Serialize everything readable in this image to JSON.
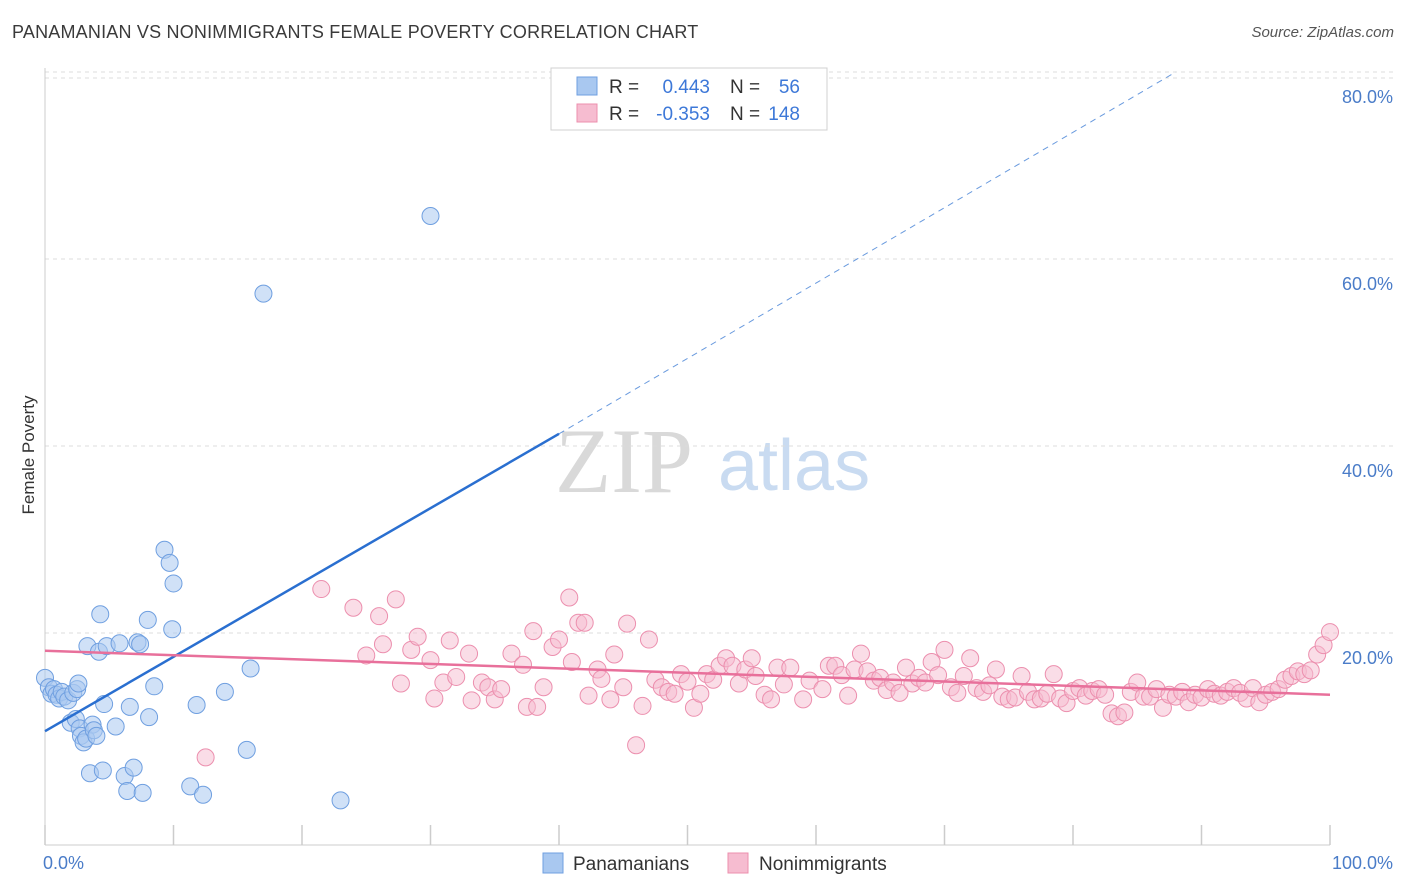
{
  "title": "PANAMANIAN VS NONIMMIGRANTS FEMALE POVERTY CORRELATION CHART",
  "source": "Source: ZipAtlas.com",
  "watermark": {
    "zip": "ZIP",
    "atlas": "atlas"
  },
  "chart_data": {
    "type": "scatter",
    "ylabel": "Female Poverty",
    "xlabel": "",
    "xlim": [
      0,
      100
    ],
    "ylim": [
      0,
      82
    ],
    "x_tick_labels": [
      "0.0%",
      "100.0%"
    ],
    "y_ticks": [
      20,
      40,
      60,
      80
    ],
    "y_tick_labels": [
      "20.0%",
      "40.0%",
      "60.0%",
      "80.0%"
    ],
    "colors": {
      "panamanians_fill": "#a9c8f0",
      "panamanians_stroke": "#6f9fe0",
      "panamanians_line": "#2a6fd0",
      "nonimmigrants_fill": "#f6bcd0",
      "nonimmigrants_stroke": "#ec8fae",
      "nonimmigrants_line": "#e8709b",
      "grid": "#dcdcdc"
    },
    "legend": {
      "r_label": "R =",
      "n_label": "N =",
      "entries": [
        {
          "r": "0.443",
          "n": "56"
        },
        {
          "r": "-0.353",
          "n": "148"
        }
      ]
    },
    "series": [
      {
        "name": "Panamanians",
        "trend": {
          "x0": 0,
          "y0": 9.5,
          "x1": 40,
          "y1": 41.3,
          "dash_to_x": 88,
          "dash_to_y": 80
        },
        "points": [
          [
            0,
            15.2
          ],
          [
            0.3,
            14.2
          ],
          [
            0.5,
            13.5
          ],
          [
            0.7,
            14.0
          ],
          [
            0.9,
            13.4
          ],
          [
            1.1,
            13.0
          ],
          [
            1.3,
            13.7
          ],
          [
            1.5,
            13.2
          ],
          [
            1.8,
            12.8
          ],
          [
            2.0,
            10.4
          ],
          [
            2.2,
            13.6
          ],
          [
            2.4,
            10.8
          ],
          [
            2.5,
            14.0
          ],
          [
            2.6,
            14.6
          ],
          [
            2.7,
            9.8
          ],
          [
            2.8,
            9.0
          ],
          [
            3.0,
            8.3
          ],
          [
            3.2,
            8.7
          ],
          [
            3.3,
            18.6
          ],
          [
            3.5,
            5.0
          ],
          [
            3.7,
            10.2
          ],
          [
            3.8,
            9.6
          ],
          [
            4.0,
            9.0
          ],
          [
            4.2,
            18.0
          ],
          [
            4.3,
            22.0
          ],
          [
            4.5,
            5.3
          ],
          [
            4.6,
            12.4
          ],
          [
            4.8,
            18.6
          ],
          [
            5.5,
            10.0
          ],
          [
            5.8,
            18.9
          ],
          [
            6.2,
            4.7
          ],
          [
            6.4,
            3.1
          ],
          [
            6.6,
            12.1
          ],
          [
            6.9,
            5.6
          ],
          [
            7.2,
            19.0
          ],
          [
            7.4,
            18.8
          ],
          [
            7.6,
            2.9
          ],
          [
            8.0,
            21.4
          ],
          [
            8.1,
            11.0
          ],
          [
            8.5,
            14.3
          ],
          [
            9.3,
            28.9
          ],
          [
            9.7,
            27.5
          ],
          [
            9.9,
            20.4
          ],
          [
            10.0,
            25.3
          ],
          [
            11.3,
            3.6
          ],
          [
            11.8,
            12.3
          ],
          [
            12.3,
            2.7
          ],
          [
            14.0,
            13.7
          ],
          [
            15.7,
            7.5
          ],
          [
            16.0,
            16.2
          ],
          [
            17.0,
            56.3
          ],
          [
            23.0,
            2.1
          ],
          [
            30.0,
            64.6
          ]
        ]
      },
      {
        "name": "Nonimmigrants",
        "trend": {
          "x0": 0,
          "y0": 18.1,
          "x1": 100,
          "y1": 13.4
        },
        "points": [
          [
            12.5,
            6.7
          ],
          [
            21.5,
            24.7
          ],
          [
            24.0,
            22.7
          ],
          [
            25.0,
            17.6
          ],
          [
            26.0,
            21.8
          ],
          [
            26.3,
            18.8
          ],
          [
            27.3,
            23.6
          ],
          [
            27.7,
            14.6
          ],
          [
            28.5,
            18.2
          ],
          [
            29.0,
            19.6
          ],
          [
            30.0,
            17.1
          ],
          [
            30.3,
            13.0
          ],
          [
            31.0,
            14.7
          ],
          [
            31.5,
            19.2
          ],
          [
            32.0,
            15.3
          ],
          [
            33.0,
            17.8
          ],
          [
            33.2,
            12.8
          ],
          [
            34.0,
            14.7
          ],
          [
            34.5,
            14.2
          ],
          [
            35.0,
            12.9
          ],
          [
            35.5,
            14.0
          ],
          [
            36.3,
            17.8
          ],
          [
            37.2,
            16.6
          ],
          [
            37.5,
            12.1
          ],
          [
            38.0,
            20.2
          ],
          [
            38.3,
            12.1
          ],
          [
            38.8,
            14.2
          ],
          [
            39.5,
            18.5
          ],
          [
            40.0,
            19.3
          ],
          [
            40.8,
            23.8
          ],
          [
            41.0,
            16.9
          ],
          [
            41.5,
            21.1
          ],
          [
            42.0,
            21.1
          ],
          [
            42.3,
            13.3
          ],
          [
            43.0,
            16.1
          ],
          [
            43.3,
            15.1
          ],
          [
            44.0,
            12.9
          ],
          [
            44.3,
            17.7
          ],
          [
            45.0,
            14.2
          ],
          [
            45.3,
            21.0
          ],
          [
            46.0,
            8.0
          ],
          [
            46.5,
            12.2
          ],
          [
            47.0,
            19.3
          ],
          [
            47.5,
            15.0
          ],
          [
            48.0,
            14.2
          ],
          [
            48.5,
            13.7
          ],
          [
            49.0,
            13.5
          ],
          [
            49.5,
            15.6
          ],
          [
            50.0,
            14.8
          ],
          [
            50.5,
            12.0
          ],
          [
            51.0,
            13.5
          ],
          [
            51.5,
            15.6
          ],
          [
            52.0,
            15.0
          ],
          [
            52.5,
            16.5
          ],
          [
            53.0,
            17.3
          ],
          [
            53.5,
            16.5
          ],
          [
            54.0,
            14.6
          ],
          [
            54.5,
            16.1
          ],
          [
            55.0,
            17.3
          ],
          [
            55.3,
            15.4
          ],
          [
            56.0,
            13.4
          ],
          [
            56.5,
            12.9
          ],
          [
            57.0,
            16.3
          ],
          [
            57.5,
            14.5
          ],
          [
            58.0,
            16.3
          ],
          [
            59.0,
            12.9
          ],
          [
            59.5,
            14.9
          ],
          [
            60.5,
            14.0
          ],
          [
            61.0,
            16.5
          ],
          [
            61.5,
            16.5
          ],
          [
            62.0,
            15.5
          ],
          [
            62.5,
            13.3
          ],
          [
            63.0,
            16.1
          ],
          [
            63.5,
            17.8
          ],
          [
            64.0,
            15.9
          ],
          [
            64.5,
            14.9
          ],
          [
            65.0,
            15.2
          ],
          [
            65.5,
            13.9
          ],
          [
            66.0,
            14.7
          ],
          [
            66.5,
            13.6
          ],
          [
            67.0,
            16.3
          ],
          [
            67.5,
            14.6
          ],
          [
            68.0,
            15.2
          ],
          [
            68.5,
            14.7
          ],
          [
            69.0,
            16.9
          ],
          [
            69.5,
            15.5
          ],
          [
            70.0,
            18.2
          ],
          [
            70.5,
            14.2
          ],
          [
            71.0,
            13.6
          ],
          [
            71.5,
            15.4
          ],
          [
            72.0,
            17.3
          ],
          [
            72.5,
            14.1
          ],
          [
            73.0,
            13.7
          ],
          [
            73.5,
            14.4
          ],
          [
            74.0,
            16.1
          ],
          [
            74.5,
            13.2
          ],
          [
            75.0,
            12.9
          ],
          [
            75.5,
            13.1
          ],
          [
            76.0,
            15.4
          ],
          [
            76.5,
            13.7
          ],
          [
            77.0,
            12.9
          ],
          [
            77.5,
            13.0
          ],
          [
            78.0,
            13.5
          ],
          [
            78.5,
            15.6
          ],
          [
            79.0,
            13.0
          ],
          [
            79.5,
            12.5
          ],
          [
            80.0,
            13.8
          ],
          [
            80.5,
            14.1
          ],
          [
            81.0,
            13.3
          ],
          [
            81.5,
            13.8
          ],
          [
            82.0,
            14.0
          ],
          [
            82.5,
            13.4
          ],
          [
            83.0,
            11.4
          ],
          [
            83.5,
            11.1
          ],
          [
            84.0,
            11.5
          ],
          [
            84.5,
            13.7
          ],
          [
            85.0,
            14.7
          ],
          [
            85.5,
            13.2
          ],
          [
            86.0,
            13.2
          ],
          [
            86.5,
            14.0
          ],
          [
            87.0,
            12.0
          ],
          [
            87.5,
            13.4
          ],
          [
            88.0,
            13.2
          ],
          [
            88.5,
            13.7
          ],
          [
            89.0,
            12.6
          ],
          [
            89.5,
            13.4
          ],
          [
            90.0,
            13.1
          ],
          [
            90.5,
            14.0
          ],
          [
            91.0,
            13.5
          ],
          [
            91.5,
            13.3
          ],
          [
            92.0,
            13.7
          ],
          [
            92.5,
            14.1
          ],
          [
            93.0,
            13.6
          ],
          [
            93.5,
            13.0
          ],
          [
            94.0,
            14.1
          ],
          [
            94.5,
            12.6
          ],
          [
            95.0,
            13.4
          ],
          [
            95.5,
            13.7
          ],
          [
            96.0,
            14.0
          ],
          [
            96.5,
            15.0
          ],
          [
            97.0,
            15.4
          ],
          [
            97.5,
            15.9
          ],
          [
            98.0,
            15.6
          ],
          [
            98.5,
            16.0
          ],
          [
            99.0,
            17.7
          ],
          [
            99.5,
            18.7
          ],
          [
            100.0,
            20.1
          ]
        ]
      }
    ]
  }
}
